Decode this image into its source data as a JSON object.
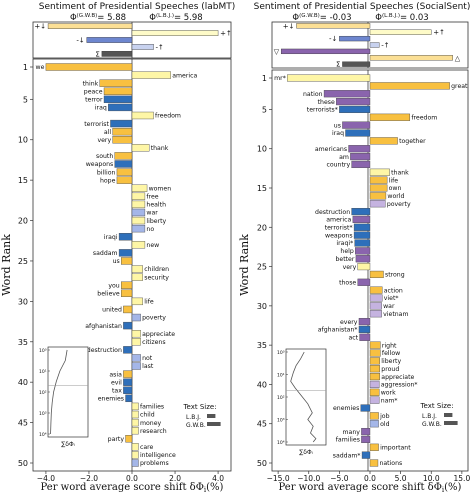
{
  "colors": {
    "pos_increase": "#fef6a6",
    "neg_decrease": "#2e6fba",
    "neg_increase": "#a4b6e8",
    "pos_decrease": "#f8c040",
    "purple_dark": "#8a64ad",
    "purple_light": "#c5b3e0",
    "summary_pos_increase": "#fefbc8",
    "summary_neg_decrease": "#6d86cf",
    "summary_neg_increase": "#c8d2ef",
    "summary_pos_decrease": "#fbdf95",
    "size_bar": "#555555"
  },
  "chart_data": [
    {
      "type": "bar",
      "orientation": "horizontal",
      "title": "Sentiment of Presidential Speeches (labMT)",
      "ref_label": "Φ(G.W.B) = 5.88",
      "comp_label": "Φ(L.B.J.) = 5.98",
      "ref_main": "Φ",
      "ref_sup": "(G.W.B)",
      "ref_val": "= 5.88",
      "comp_main": "Φ",
      "comp_sup": "(L.B.J.)",
      "comp_val": "= 5.98",
      "xlabel": "Per word average score shift δΦ",
      "xlabel_main": "Per word average score shift δΦ",
      "xlabel_sub": "i",
      "xlabel_tail": "(%)",
      "ylabel": "Word Rank",
      "xlim": [
        -4.6,
        4.6
      ],
      "xticks": [
        -4.0,
        -2.0,
        0.0,
        2.0,
        4.0
      ],
      "xtick_labels": [
        "−4.0",
        "−2.0",
        "0.0",
        "2.0",
        "4.0"
      ],
      "ylim": [
        1,
        50
      ],
      "yticks": [
        1,
        5,
        10,
        15,
        20,
        25,
        30,
        35,
        40,
        45,
        50
      ],
      "summary": [
        {
          "label": "+↓",
          "value": -3.9,
          "kind": "pos_decrease"
        },
        {
          "label": "+↑",
          "value": 4.0,
          "kind": "pos_increase"
        },
        {
          "label": "-↓",
          "value": -2.1,
          "kind": "neg_decrease"
        },
        {
          "label": "-↑",
          "value": 1.0,
          "kind": "neg_increase"
        },
        {
          "label": "Σ",
          "value": -1.4,
          "kind": "size_bar"
        }
      ],
      "words": [
        {
          "rank": 1,
          "word": "we",
          "value": -4.0,
          "kind": "pos_decrease"
        },
        {
          "rank": 2,
          "word": "america",
          "value": 1.8,
          "kind": "pos_increase"
        },
        {
          "rank": 3,
          "word": "think",
          "value": -1.5,
          "kind": "pos_decrease"
        },
        {
          "rank": 4,
          "word": "peace",
          "value": -1.3,
          "kind": "pos_decrease"
        },
        {
          "rank": 5,
          "word": "terror",
          "value": -1.3,
          "kind": "neg_decrease"
        },
        {
          "rank": 6,
          "word": "iraq",
          "value": -1.1,
          "kind": "neg_decrease"
        },
        {
          "rank": 7,
          "word": "freedom",
          "value": 1.0,
          "kind": "pos_increase"
        },
        {
          "rank": 8,
          "word": "terrorist",
          "value": -1.0,
          "kind": "neg_decrease"
        },
        {
          "rank": 9,
          "word": "all",
          "value": -0.9,
          "kind": "pos_decrease"
        },
        {
          "rank": 10,
          "word": "very",
          "value": -0.9,
          "kind": "pos_decrease"
        },
        {
          "rank": 11,
          "word": "thank",
          "value": 0.8,
          "kind": "pos_increase"
        },
        {
          "rank": 12,
          "word": "south",
          "value": -0.8,
          "kind": "pos_decrease"
        },
        {
          "rank": 13,
          "word": "weapons",
          "value": -0.8,
          "kind": "neg_decrease"
        },
        {
          "rank": 14,
          "word": "billion",
          "value": -0.7,
          "kind": "pos_decrease"
        },
        {
          "rank": 15,
          "word": "hope",
          "value": -0.7,
          "kind": "pos_decrease"
        },
        {
          "rank": 16,
          "word": "women",
          "value": 0.7,
          "kind": "pos_increase"
        },
        {
          "rank": 17,
          "word": "free",
          "value": 0.6,
          "kind": "pos_increase"
        },
        {
          "rank": 18,
          "word": "health",
          "value": 0.6,
          "kind": "pos_increase"
        },
        {
          "rank": 19,
          "word": "war",
          "value": 0.6,
          "kind": "neg_increase"
        },
        {
          "rank": 20,
          "word": "liberty",
          "value": 0.6,
          "kind": "pos_increase"
        },
        {
          "rank": 21,
          "word": "no",
          "value": 0.6,
          "kind": "neg_increase"
        },
        {
          "rank": 22,
          "word": "iraqi",
          "value": -0.6,
          "kind": "neg_decrease"
        },
        {
          "rank": 23,
          "word": "new",
          "value": 0.6,
          "kind": "pos_increase"
        },
        {
          "rank": 24,
          "word": "saddam",
          "value": -0.6,
          "kind": "neg_decrease"
        },
        {
          "rank": 25,
          "word": "us",
          "value": -0.5,
          "kind": "pos_decrease"
        },
        {
          "rank": 26,
          "word": "children",
          "value": 0.5,
          "kind": "pos_increase"
        },
        {
          "rank": 27,
          "word": "security",
          "value": 0.5,
          "kind": "pos_increase"
        },
        {
          "rank": 28,
          "word": "you",
          "value": -0.5,
          "kind": "pos_decrease"
        },
        {
          "rank": 29,
          "word": "believe",
          "value": -0.5,
          "kind": "pos_decrease"
        },
        {
          "rank": 30,
          "word": "life",
          "value": 0.5,
          "kind": "pos_increase"
        },
        {
          "rank": 31,
          "word": "united",
          "value": -0.4,
          "kind": "pos_decrease"
        },
        {
          "rank": 32,
          "word": "poverty",
          "value": 0.4,
          "kind": "neg_increase"
        },
        {
          "rank": 33,
          "word": "afghanistan",
          "value": -0.4,
          "kind": "neg_decrease"
        },
        {
          "rank": 34,
          "word": "appreciate",
          "value": 0.4,
          "kind": "pos_increase"
        },
        {
          "rank": 35,
          "word": "citizens",
          "value": 0.4,
          "kind": "pos_increase"
        },
        {
          "rank": 36,
          "word": "destruction",
          "value": -0.4,
          "kind": "neg_decrease"
        },
        {
          "rank": 37,
          "word": "not",
          "value": 0.4,
          "kind": "neg_increase"
        },
        {
          "rank": 38,
          "word": "last",
          "value": 0.4,
          "kind": "neg_increase"
        },
        {
          "rank": 39,
          "word": "asia",
          "value": -0.4,
          "kind": "pos_decrease"
        },
        {
          "rank": 40,
          "word": "evil",
          "value": -0.4,
          "kind": "neg_decrease"
        },
        {
          "rank": 41,
          "word": "tax",
          "value": -0.4,
          "kind": "neg_decrease"
        },
        {
          "rank": 42,
          "word": "enemies",
          "value": -0.3,
          "kind": "neg_decrease"
        },
        {
          "rank": 43,
          "word": "families",
          "value": 0.3,
          "kind": "pos_increase"
        },
        {
          "rank": 44,
          "word": "child",
          "value": 0.3,
          "kind": "pos_increase"
        },
        {
          "rank": 45,
          "word": "money",
          "value": 0.3,
          "kind": "pos_increase"
        },
        {
          "rank": 46,
          "word": "research",
          "value": 0.3,
          "kind": "pos_increase"
        },
        {
          "rank": 47,
          "word": "party",
          "value": -0.3,
          "kind": "pos_decrease"
        },
        {
          "rank": 48,
          "word": "care",
          "value": 0.3,
          "kind": "pos_increase"
        },
        {
          "rank": 49,
          "word": "intelligence",
          "value": 0.3,
          "kind": "pos_increase"
        },
        {
          "rank": 50,
          "word": "problems",
          "value": 0.3,
          "kind": "neg_increase"
        }
      ],
      "inset": {
        "ytick_labels": [
          "10⁰",
          "10¹",
          "10²",
          "10³",
          "10⁴"
        ],
        "xlabel": "∑δΦᵢ",
        "curve_x": [
          -0.05,
          -0.15,
          -0.45,
          -0.65,
          -0.8,
          -0.88,
          -0.93,
          -0.95,
          -0.96,
          -0.97
        ],
        "curve_y": [
          0,
          0.5,
          1.0,
          1.5,
          2.0,
          2.5,
          3.0,
          3.5,
          3.8,
          4.0
        ],
        "hline_y": 1.7
      },
      "legend_title": "Text Size:",
      "legend": [
        {
          "label": "L.B.J.",
          "size": 0.38
        },
        {
          "label": "G.W.B.",
          "size": 0.62
        }
      ]
    },
    {
      "type": "bar",
      "orientation": "horizontal",
      "title": "Sentiment of Presidential Speeches (SocialSent)",
      "ref_label": "Φ(G.W.B) = -0.03",
      "comp_label": "Φ(L.B.J.) = 0.03",
      "ref_main": "Φ",
      "ref_sup": "(G.W.B)",
      "ref_val": "= -0.03",
      "comp_main": "Φ",
      "comp_sup": "(L.B.J.)",
      "comp_val": "= 0.03",
      "xlabel": "Per word average score shift δΦ",
      "xlabel_main": "Per word average score shift δΦ",
      "xlabel_sub": "i",
      "xlabel_tail": "(%)",
      "ylabel": "Word Rank",
      "xlim": [
        -16.0,
        16.0
      ],
      "xticks": [
        -15.0,
        -10.0,
        -5.0,
        0.0,
        5.0,
        10.0,
        15.0
      ],
      "xtick_labels": [
        "−15.0",
        "−10.0",
        "−5.0",
        "0.0",
        "5.0",
        "10.0",
        "15.0"
      ],
      "ylim": [
        1,
        50
      ],
      "yticks": [
        1,
        5,
        10,
        15,
        20,
        25,
        30,
        35,
        40,
        45,
        50
      ],
      "summary": [
        {
          "label": "+↓",
          "value": -12.0,
          "kind": "pos_decrease"
        },
        {
          "label": "+↑",
          "value": 10.0,
          "kind": "pos_increase"
        },
        {
          "label": "-↓",
          "value": -5.0,
          "kind": "neg_decrease"
        },
        {
          "label": "-↑",
          "value": 1.5,
          "kind": "neg_increase"
        },
        {
          "label": "▽",
          "value": -14.5,
          "kind": "purple_dark"
        },
        {
          "label": "△",
          "value": 13.5,
          "kind": "pos_decrease"
        },
        {
          "label": "Σ",
          "value": -4.5,
          "kind": "size_bar"
        }
      ],
      "words": [
        {
          "rank": 1,
          "word": "mr*",
          "value": -13.5,
          "kind": "pos_increase"
        },
        {
          "rank": 2,
          "word": "great",
          "value": 13.0,
          "kind": "pos_decrease"
        },
        {
          "rank": 3,
          "word": "nation",
          "value": -7.5,
          "kind": "purple_dark"
        },
        {
          "rank": 4,
          "word": "these",
          "value": -5.5,
          "kind": "purple_dark"
        },
        {
          "rank": 5,
          "word": "terrorists*",
          "value": -5.0,
          "kind": "neg_decrease"
        },
        {
          "rank": 6,
          "word": "freedom",
          "value": 6.5,
          "kind": "pos_decrease"
        },
        {
          "rank": 7,
          "word": "us",
          "value": -4.5,
          "kind": "purple_dark"
        },
        {
          "rank": 8,
          "word": "iraq",
          "value": -4.0,
          "kind": "neg_decrease"
        },
        {
          "rank": 9,
          "word": "together",
          "value": 4.5,
          "kind": "pos_decrease"
        },
        {
          "rank": 10,
          "word": "americans",
          "value": -3.5,
          "kind": "purple_dark"
        },
        {
          "rank": 11,
          "word": "am",
          "value": -3.2,
          "kind": "purple_dark"
        },
        {
          "rank": 12,
          "word": "country",
          "value": -3.0,
          "kind": "purple_dark"
        },
        {
          "rank": 13,
          "word": "thank",
          "value": 3.2,
          "kind": "pos_increase"
        },
        {
          "rank": 14,
          "word": "life",
          "value": 2.8,
          "kind": "pos_decrease"
        },
        {
          "rank": 15,
          "word": "own",
          "value": 2.8,
          "kind": "pos_decrease"
        },
        {
          "rank": 16,
          "word": "world",
          "value": 2.6,
          "kind": "pos_decrease"
        },
        {
          "rank": 17,
          "word": "poverty",
          "value": 2.5,
          "kind": "purple_light"
        },
        {
          "rank": 18,
          "word": "destruction",
          "value": -3.0,
          "kind": "neg_decrease"
        },
        {
          "rank": 19,
          "word": "america",
          "value": -2.8,
          "kind": "purple_dark"
        },
        {
          "rank": 20,
          "word": "terrorist*",
          "value": -2.6,
          "kind": "neg_decrease"
        },
        {
          "rank": 21,
          "word": "weapons",
          "value": -2.6,
          "kind": "neg_decrease"
        },
        {
          "rank": 22,
          "word": "iraqi*",
          "value": -2.5,
          "kind": "neg_decrease"
        },
        {
          "rank": 23,
          "word": "help",
          "value": -2.4,
          "kind": "purple_dark"
        },
        {
          "rank": 24,
          "word": "better",
          "value": -2.3,
          "kind": "purple_dark"
        },
        {
          "rank": 25,
          "word": "very",
          "value": -2.0,
          "kind": "pos_increase"
        },
        {
          "rank": 26,
          "word": "strong",
          "value": 2.2,
          "kind": "pos_decrease"
        },
        {
          "rank": 27,
          "word": "those",
          "value": -2.0,
          "kind": "purple_dark"
        },
        {
          "rank": 28,
          "word": "action",
          "value": 2.0,
          "kind": "pos_decrease"
        },
        {
          "rank": 29,
          "word": "viet*",
          "value": 2.0,
          "kind": "purple_light"
        },
        {
          "rank": 30,
          "word": "war",
          "value": 1.9,
          "kind": "purple_light"
        },
        {
          "rank": 31,
          "word": "vietnam",
          "value": 1.9,
          "kind": "purple_light"
        },
        {
          "rank": 32,
          "word": "every",
          "value": -1.8,
          "kind": "purple_dark"
        },
        {
          "rank": 33,
          "word": "afghanistan*",
          "value": -1.8,
          "kind": "neg_decrease"
        },
        {
          "rank": 34,
          "word": "act",
          "value": -1.7,
          "kind": "purple_dark"
        },
        {
          "rank": 35,
          "word": "right",
          "value": 1.7,
          "kind": "pos_decrease"
        },
        {
          "rank": 36,
          "word": "fellow",
          "value": 1.7,
          "kind": "pos_decrease"
        },
        {
          "rank": 37,
          "word": "liberty",
          "value": 1.6,
          "kind": "pos_decrease"
        },
        {
          "rank": 38,
          "word": "proud",
          "value": 1.6,
          "kind": "pos_decrease"
        },
        {
          "rank": 39,
          "word": "appreciate",
          "value": 1.6,
          "kind": "pos_decrease"
        },
        {
          "rank": 40,
          "word": "aggression*",
          "value": 1.5,
          "kind": "purple_light"
        },
        {
          "rank": 41,
          "word": "work",
          "value": 1.5,
          "kind": "pos_decrease"
        },
        {
          "rank": 42,
          "word": "nam*",
          "value": 1.5,
          "kind": "purple_light"
        },
        {
          "rank": 43,
          "word": "enemies",
          "value": -1.5,
          "kind": "neg_decrease"
        },
        {
          "rank": 44,
          "word": "job",
          "value": 1.4,
          "kind": "pos_decrease"
        },
        {
          "rank": 45,
          "word": "old",
          "value": 1.4,
          "kind": "neg_increase"
        },
        {
          "rank": 46,
          "word": "many",
          "value": -1.4,
          "kind": "purple_dark"
        },
        {
          "rank": 47,
          "word": "families",
          "value": -1.4,
          "kind": "purple_dark"
        },
        {
          "rank": 48,
          "word": "important",
          "value": 1.4,
          "kind": "pos_decrease"
        },
        {
          "rank": 49,
          "word": "saddam*",
          "value": -1.3,
          "kind": "neg_decrease"
        },
        {
          "rank": 50,
          "word": "nations",
          "value": 1.3,
          "kind": "pos_decrease"
        }
      ],
      "inset": {
        "ytick_labels": [
          "10⁰",
          "10¹",
          "10²",
          "10³",
          "10⁴"
        ],
        "xlabel": "∑δΦᵢ",
        "curve_x": [
          -0.1,
          -0.3,
          -0.55,
          -0.7,
          -0.85,
          -0.6,
          -0.3,
          0.1,
          0.35,
          0.1,
          0.4,
          0.25,
          0.55,
          0.4
        ],
        "curve_y": [
          0,
          0.3,
          0.6,
          0.9,
          1.3,
          1.6,
          1.9,
          2.3,
          2.7,
          3.0,
          3.3,
          3.6,
          3.85,
          4.0
        ],
        "hline_y": 1.7
      },
      "legend_title": "Text Size:",
      "legend": [
        {
          "label": "L.B.J.",
          "size": 0.38
        },
        {
          "label": "G.W.B.",
          "size": 0.62
        }
      ]
    }
  ]
}
